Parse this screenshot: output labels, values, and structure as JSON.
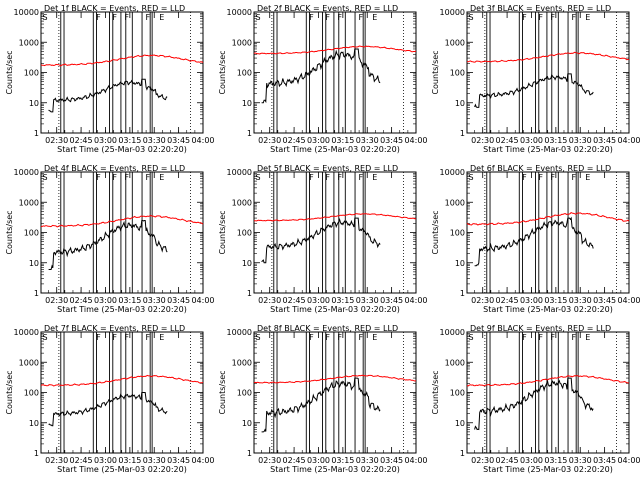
{
  "start_time_label": "Start Time (25-Mar-03 02:20:20)",
  "ylabel": "Counts/sec",
  "colors": {
    "events": "#000000",
    "lld": "#ff0000",
    "background": "#ffffff"
  },
  "chart_data": [
    {
      "type": "line",
      "title": "Det 1f BLACK = Events, RED = LLD",
      "xlabel": "Start Time (25-Mar-03 02:20:20)",
      "ylabel": "Counts/sec",
      "x_ticks": [
        "02:30",
        "02:45",
        "03:00",
        "03:15",
        "03:30",
        "03:45",
        "04:00"
      ],
      "xlim": [
        "02:20:20",
        "04:00"
      ],
      "y_ticks": [
        "1",
        "10",
        "100",
        "1000",
        "10000"
      ],
      "ylim": [
        1,
        10000
      ],
      "yscale": "log",
      "flag_markers": [
        "S",
        "F",
        "F",
        "F",
        "F",
        "E"
      ],
      "series": [
        {
          "name": "BLACK = Events",
          "color": "#000000",
          "start": "02:25",
          "end": "03:38",
          "min": 5,
          "max": 60
        },
        {
          "name": "RED = LLD",
          "color": "#ff0000",
          "start": "02:20:20",
          "end": "04:00",
          "min": 110,
          "max": 420
        }
      ]
    },
    {
      "type": "line",
      "title": "Det 2f BLACK = Events, RED = LLD",
      "xlabel": "Start Time (25-Mar-03 02:20:20)",
      "ylabel": "Counts/sec",
      "x_ticks": [
        "02:30",
        "02:45",
        "03:00",
        "03:15",
        "03:30",
        "03:45",
        "04:00"
      ],
      "xlim": [
        "02:20:20",
        "04:00"
      ],
      "y_ticks": [
        "1",
        "10",
        "100",
        "1000",
        "10000"
      ],
      "ylim": [
        1,
        10000
      ],
      "yscale": "log",
      "flag_markers": [
        "S",
        "F",
        "F",
        "F",
        "F",
        "E"
      ],
      "series": [
        {
          "name": "BLACK = Events",
          "color": "#000000",
          "start": "02:25",
          "end": "03:38",
          "min": 10,
          "max": 600
        },
        {
          "name": "RED = LLD",
          "color": "#ff0000",
          "start": "02:20:20",
          "end": "04:00",
          "min": 300,
          "max": 800
        }
      ]
    },
    {
      "type": "line",
      "title": "Det 3f BLACK = Events, RED = LLD",
      "xlabel": "Start Time (25-Mar-03 02:20:20)",
      "ylabel": "Counts/sec",
      "x_ticks": [
        "02:30",
        "02:45",
        "03:00",
        "03:15",
        "03:30",
        "03:45",
        "04:00"
      ],
      "xlim": [
        "02:20:20",
        "04:00"
      ],
      "y_ticks": [
        "1",
        "10",
        "100",
        "1000",
        "10000"
      ],
      "ylim": [
        1,
        10000
      ],
      "yscale": "log",
      "flag_markers": [
        "S",
        "F",
        "F",
        "F",
        "F",
        "E"
      ],
      "series": [
        {
          "name": "BLACK = Events",
          "color": "#000000",
          "start": "02:25",
          "end": "03:38",
          "min": 7,
          "max": 90
        },
        {
          "name": "RED = LLD",
          "color": "#ff0000",
          "start": "02:20:20",
          "end": "04:00",
          "min": 150,
          "max": 500
        }
      ]
    },
    {
      "type": "line",
      "title": "Det 4f BLACK = Events, RED = LLD",
      "xlabel": "Start Time (25-Mar-03 02:20:20)",
      "ylabel": "Counts/sec",
      "x_ticks": [
        "02:30",
        "02:45",
        "03:00",
        "03:15",
        "03:30",
        "03:45",
        "04:00"
      ],
      "xlim": [
        "02:20:20",
        "04:00"
      ],
      "y_ticks": [
        "1",
        "10",
        "100",
        "1000",
        "10000"
      ],
      "ylim": [
        1,
        10000
      ],
      "yscale": "log",
      "flag_markers": [
        "S",
        "F",
        "F",
        "F",
        "F",
        "E"
      ],
      "series": [
        {
          "name": "BLACK = Events",
          "color": "#000000",
          "start": "02:25",
          "end": "03:38",
          "min": 6,
          "max": 250
        },
        {
          "name": "RED = LLD",
          "color": "#ff0000",
          "start": "02:20:20",
          "end": "04:00",
          "min": 100,
          "max": 400
        }
      ]
    },
    {
      "type": "line",
      "title": "Det 5f BLACK = Events, RED = LLD",
      "xlabel": "Start Time (25-Mar-03 02:20:20)",
      "ylabel": "Counts/sec",
      "x_ticks": [
        "02:30",
        "02:45",
        "03:00",
        "03:15",
        "03:30",
        "03:45",
        "04:00"
      ],
      "xlim": [
        "02:20:20",
        "04:00"
      ],
      "y_ticks": [
        "1",
        "10",
        "100",
        "1000",
        "10000"
      ],
      "ylim": [
        1,
        10000
      ],
      "yscale": "log",
      "flag_markers": [
        "S",
        "F",
        "F",
        "F",
        "F",
        "E"
      ],
      "series": [
        {
          "name": "BLACK = Events",
          "color": "#000000",
          "start": "02:25",
          "end": "03:38",
          "min": 10,
          "max": 300
        },
        {
          "name": "RED = LLD",
          "color": "#ff0000",
          "start": "02:20:20",
          "end": "04:00",
          "min": 180,
          "max": 450
        }
      ]
    },
    {
      "type": "line",
      "title": "Det 6f BLACK = Events, RED = LLD",
      "xlabel": "Start Time (25-Mar-03 02:20:20)",
      "ylabel": "Counts/sec",
      "x_ticks": [
        "02:30",
        "02:45",
        "03:00",
        "03:15",
        "03:30",
        "03:45",
        "04:00"
      ],
      "xlim": [
        "02:20:20",
        "04:00"
      ],
      "y_ticks": [
        "1",
        "10",
        "100",
        "1000",
        "10000"
      ],
      "ylim": [
        1,
        10000
      ],
      "yscale": "log",
      "flag_markers": [
        "S",
        "F",
        "F",
        "F",
        "F",
        "E"
      ],
      "series": [
        {
          "name": "BLACK = Events",
          "color": "#000000",
          "start": "02:25",
          "end": "03:38",
          "min": 8,
          "max": 300
        },
        {
          "name": "RED = LLD",
          "color": "#ff0000",
          "start": "02:20:20",
          "end": "04:00",
          "min": 110,
          "max": 500
        }
      ]
    },
    {
      "type": "line",
      "title": "Det 7f BLACK = Events, RED = LLD",
      "xlabel": "Start Time (25-Mar-03 02:20:20)",
      "ylabel": "Counts/sec",
      "x_ticks": [
        "02:30",
        "02:45",
        "03:00",
        "03:15",
        "03:30",
        "03:45",
        "04:00"
      ],
      "xlim": [
        "02:20:20",
        "04:00"
      ],
      "y_ticks": [
        "1",
        "10",
        "100",
        "1000",
        "10000"
      ],
      "ylim": [
        1,
        10000
      ],
      "yscale": "log",
      "flag_markers": [
        "S",
        "F",
        "F",
        "F",
        "F",
        "E"
      ],
      "series": [
        {
          "name": "BLACK = Events",
          "color": "#000000",
          "start": "02:25",
          "end": "03:38",
          "min": 8,
          "max": 100
        },
        {
          "name": "RED = LLD",
          "color": "#ff0000",
          "start": "02:20:20",
          "end": "04:00",
          "min": 110,
          "max": 400
        }
      ]
    },
    {
      "type": "line",
      "title": "Det 8f BLACK = Events, RED = LLD",
      "xlabel": "Start Time (25-Mar-03 02:20:20)",
      "ylabel": "Counts/sec",
      "x_ticks": [
        "02:30",
        "02:45",
        "03:00",
        "03:15",
        "03:30",
        "03:45",
        "04:00"
      ],
      "xlim": [
        "02:20:20",
        "04:00"
      ],
      "y_ticks": [
        "1",
        "10",
        "100",
        "1000",
        "10000"
      ],
      "ylim": [
        1,
        10000
      ],
      "yscale": "log",
      "flag_markers": [
        "S",
        "F",
        "F",
        "F",
        "F",
        "E"
      ],
      "series": [
        {
          "name": "BLACK = Events",
          "color": "#000000",
          "start": "02:25",
          "end": "03:38",
          "min": 5,
          "max": 300
        },
        {
          "name": "RED = LLD",
          "color": "#ff0000",
          "start": "02:20:20",
          "end": "04:00",
          "min": 150,
          "max": 400
        }
      ]
    },
    {
      "type": "line",
      "title": "Det 9f BLACK = Events, RED = LLD",
      "xlabel": "Start Time (25-Mar-03 02:20:20)",
      "ylabel": "Counts/sec",
      "x_ticks": [
        "02:30",
        "02:45",
        "03:00",
        "03:15",
        "03:30",
        "03:45",
        "04:00"
      ],
      "xlim": [
        "02:20:20",
        "04:00"
      ],
      "y_ticks": [
        "1",
        "10",
        "100",
        "1000",
        "10000"
      ],
      "ylim": [
        1,
        10000
      ],
      "yscale": "log",
      "flag_markers": [
        "S",
        "F",
        "F",
        "F",
        "F",
        "E"
      ],
      "series": [
        {
          "name": "BLACK = Events",
          "color": "#000000",
          "start": "02:25",
          "end": "03:38",
          "min": 6,
          "max": 300
        },
        {
          "name": "RED = LLD",
          "color": "#ff0000",
          "start": "02:20:20",
          "end": "04:00",
          "min": 110,
          "max": 400
        }
      ]
    }
  ]
}
